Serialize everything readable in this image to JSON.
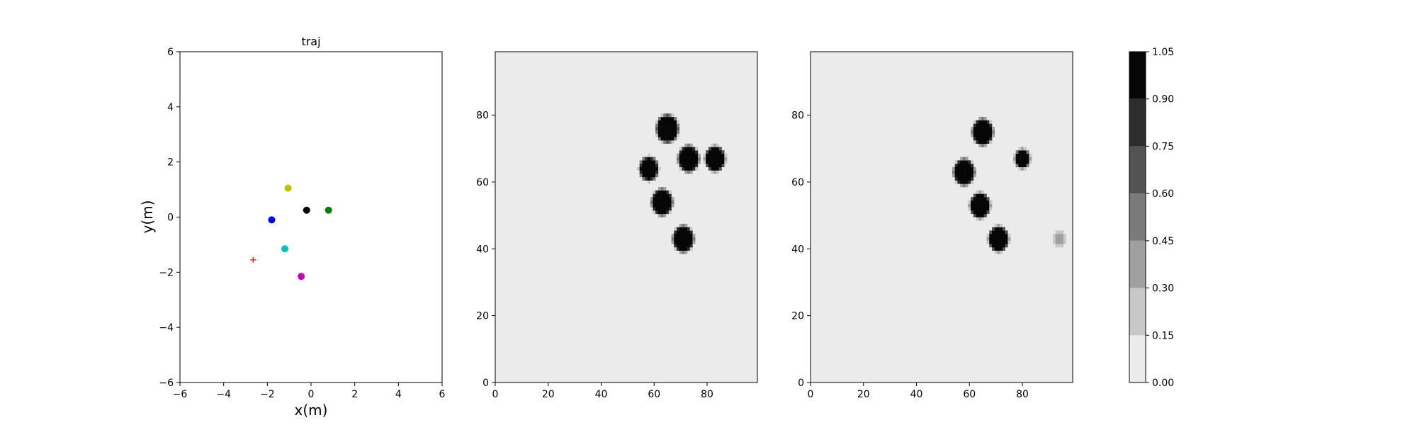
{
  "chart_data": [
    {
      "type": "scatter",
      "title": "traj",
      "xlabel": "x(m)",
      "ylabel": "y(m)",
      "xlim": [
        -6,
        6
      ],
      "ylim": [
        -6,
        6
      ],
      "xticks": [
        "−6",
        "−4",
        "−2",
        "0",
        "2",
        "4",
        "6"
      ],
      "yticks": [
        "−6",
        "−4",
        "−2",
        "0",
        "2",
        "4",
        "6"
      ],
      "grid": false,
      "points": [
        {
          "x": -1.05,
          "y": 1.05,
          "color": "#bfbf00",
          "marker": "circle"
        },
        {
          "x": -0.2,
          "y": 0.25,
          "color": "#000000",
          "marker": "circle"
        },
        {
          "x": 0.8,
          "y": 0.25,
          "color": "#008000",
          "marker": "circle"
        },
        {
          "x": -1.8,
          "y": -0.1,
          "color": "#0000ff",
          "marker": "circle"
        },
        {
          "x": -1.2,
          "y": -1.15,
          "color": "#00bfbf",
          "marker": "circle"
        },
        {
          "x": -0.45,
          "y": -2.15,
          "color": "#bf00bf",
          "marker": "circle"
        },
        {
          "x": -2.65,
          "y": -1.55,
          "color": "#ff0000",
          "marker": "plus"
        }
      ]
    },
    {
      "type": "heatmap",
      "xlim": [
        0,
        99
      ],
      "ylim": [
        0,
        99
      ],
      "xticks": [
        "0",
        "20",
        "40",
        "60",
        "80"
      ],
      "yticks": [
        "0",
        "20",
        "40",
        "60",
        "80"
      ],
      "background_value": 0.05,
      "blobs": [
        {
          "x": 65,
          "y": 76,
          "r": 3.6
        },
        {
          "x": 73,
          "y": 67,
          "r": 3.4
        },
        {
          "x": 83,
          "y": 67,
          "r": 3.2
        },
        {
          "x": 58,
          "y": 64,
          "r": 3.0
        },
        {
          "x": 63,
          "y": 54,
          "r": 3.4
        },
        {
          "x": 71,
          "y": 43,
          "r": 3.4
        }
      ]
    },
    {
      "type": "heatmap",
      "xlim": [
        0,
        99
      ],
      "ylim": [
        0,
        99
      ],
      "xticks": [
        "0",
        "20",
        "40",
        "60",
        "80"
      ],
      "yticks": [
        "0",
        "20",
        "40",
        "60",
        "80"
      ],
      "background_value": 0.05,
      "blobs": [
        {
          "x": 65,
          "y": 75,
          "r": 3.4
        },
        {
          "x": 58,
          "y": 63,
          "r": 3.4
        },
        {
          "x": 64,
          "y": 53,
          "r": 3.2
        },
        {
          "x": 71,
          "y": 43,
          "r": 3.2
        },
        {
          "x": 80,
          "y": 67,
          "r": 2.2
        },
        {
          "x": 94,
          "y": 43,
          "r": 1.6,
          "peak": 0.4
        }
      ]
    }
  ],
  "colorbar": {
    "levels": [
      0.0,
      0.15,
      0.3,
      0.45,
      0.6,
      0.75,
      0.9,
      1.05
    ],
    "labels": [
      "0.00",
      "0.15",
      "0.30",
      "0.45",
      "0.60",
      "0.75",
      "0.90",
      "1.05"
    ],
    "colors": [
      "#ebebeb",
      "#c8c8c8",
      "#a0a0a0",
      "#7a7a7a",
      "#535353",
      "#2d2d2d",
      "#060606"
    ]
  }
}
